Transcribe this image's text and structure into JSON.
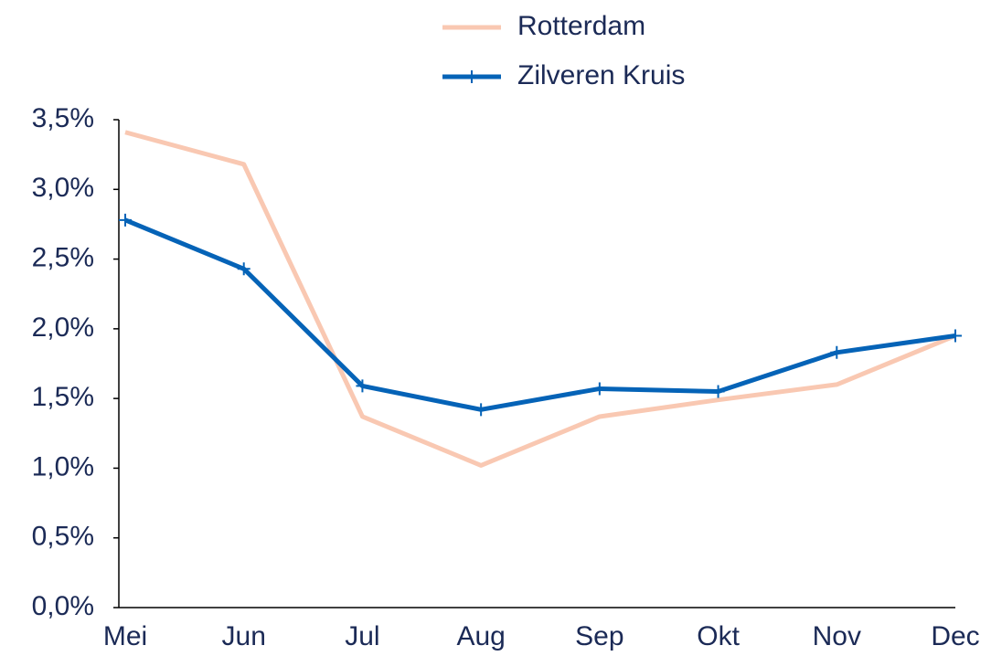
{
  "chart_data": {
    "type": "line",
    "categories": [
      "Mei",
      "Jun",
      "Jul",
      "Aug",
      "Sep",
      "Okt",
      "Nov",
      "Dec"
    ],
    "series": [
      {
        "name": "Rotterdam",
        "color": "#f9c8b2",
        "values": [
          3.41,
          3.18,
          1.37,
          1.02,
          1.37,
          1.49,
          1.6,
          1.95
        ]
      },
      {
        "name": "Zilveren Kruis",
        "color": "#0563b7",
        "marker": "plus",
        "values": [
          2.78,
          2.43,
          1.59,
          1.42,
          1.57,
          1.55,
          1.83,
          1.95
        ]
      }
    ],
    "ylim": [
      0,
      3.5
    ],
    "yticks": [
      {
        "value": 0,
        "label": "0,0%"
      },
      {
        "value": 0.5,
        "label": "0,5%"
      },
      {
        "value": 1,
        "label": "1,0%"
      },
      {
        "value": 1.5,
        "label": "1,5%"
      },
      {
        "value": 2,
        "label": "2,0%"
      },
      {
        "value": 2.5,
        "label": "2,5%"
      },
      {
        "value": 3,
        "label": "3,0%"
      },
      {
        "value": 3.5,
        "label": "3,5%"
      }
    ],
    "grid": false,
    "legend": "top"
  }
}
